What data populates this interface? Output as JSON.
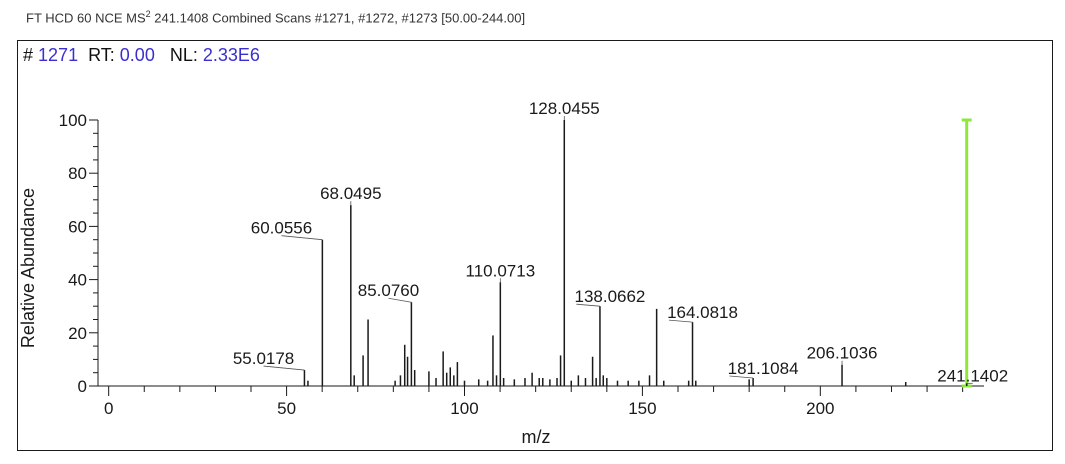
{
  "header": {
    "prefix": "FT HCD 60 NCE MS",
    "superscript": "2",
    "suffix": " 241.1408 Combined Scans #1271, #1272, #1273 [50.00-244.00]"
  },
  "scan_info": {
    "hash": "#",
    "scan_number": "1271",
    "rt_label": "RT:",
    "rt_value": "0.00",
    "nl_label": "NL:",
    "nl_value": "2.33E6"
  },
  "colors": {
    "axis": "#1a1a1a",
    "value_text": "#3a2fd0",
    "precursor_marker": "#8ee83a"
  },
  "chart_data": {
    "type": "bar",
    "xlabel": "m/z",
    "ylabel": "Relative Abundance",
    "xlim": [
      -3,
      246
    ],
    "ylim": [
      0,
      100
    ],
    "x_ticks": [
      0,
      50,
      100,
      150,
      200
    ],
    "y_ticks": [
      0,
      20,
      40,
      60,
      80,
      100
    ],
    "precursor_mz": 241.1402,
    "peaks": [
      {
        "mz": 55.0178,
        "intensity": 6.0,
        "label": "55.0178"
      },
      {
        "mz": 56.0,
        "intensity": 2.0
      },
      {
        "mz": 60.0556,
        "intensity": 55.0,
        "label": "60.0556"
      },
      {
        "mz": 68.0495,
        "intensity": 68.0,
        "label": "68.0495"
      },
      {
        "mz": 69.0,
        "intensity": 4.0
      },
      {
        "mz": 71.5,
        "intensity": 11.5
      },
      {
        "mz": 72.9,
        "intensity": 25.0
      },
      {
        "mz": 80.5,
        "intensity": 2.0
      },
      {
        "mz": 82.0,
        "intensity": 4.0
      },
      {
        "mz": 83.2,
        "intensity": 15.5
      },
      {
        "mz": 84.0,
        "intensity": 11.0
      },
      {
        "mz": 85.076,
        "intensity": 31.5,
        "label": "85.0760"
      },
      {
        "mz": 86.0,
        "intensity": 6.0
      },
      {
        "mz": 90.0,
        "intensity": 5.5
      },
      {
        "mz": 92.0,
        "intensity": 3.0
      },
      {
        "mz": 94.0,
        "intensity": 13.0
      },
      {
        "mz": 95.0,
        "intensity": 5.0
      },
      {
        "mz": 96.0,
        "intensity": 7.0
      },
      {
        "mz": 97.0,
        "intensity": 4.0
      },
      {
        "mz": 98.0,
        "intensity": 9.0
      },
      {
        "mz": 100.0,
        "intensity": 2.0
      },
      {
        "mz": 104.0,
        "intensity": 2.5
      },
      {
        "mz": 106.5,
        "intensity": 2.0
      },
      {
        "mz": 108.0,
        "intensity": 19.0
      },
      {
        "mz": 109.0,
        "intensity": 4.0
      },
      {
        "mz": 110.0713,
        "intensity": 39.0,
        "label": "110.0713"
      },
      {
        "mz": 111.0,
        "intensity": 3.0
      },
      {
        "mz": 114.0,
        "intensity": 2.5
      },
      {
        "mz": 117.0,
        "intensity": 3.0
      },
      {
        "mz": 119.0,
        "intensity": 5.0
      },
      {
        "mz": 121.0,
        "intensity": 3.0
      },
      {
        "mz": 122.0,
        "intensity": 3.0
      },
      {
        "mz": 124.0,
        "intensity": 2.5
      },
      {
        "mz": 126.0,
        "intensity": 3.0
      },
      {
        "mz": 127.0,
        "intensity": 11.5
      },
      {
        "mz": 128.0455,
        "intensity": 100.0,
        "label": "128.0455"
      },
      {
        "mz": 130.0,
        "intensity": 2.0
      },
      {
        "mz": 132.0,
        "intensity": 4.0
      },
      {
        "mz": 134.0,
        "intensity": 3.0
      },
      {
        "mz": 136.0,
        "intensity": 11.0
      },
      {
        "mz": 137.0,
        "intensity": 3.0
      },
      {
        "mz": 138.0662,
        "intensity": 30.0,
        "label": "138.0662"
      },
      {
        "mz": 139.0,
        "intensity": 4.0
      },
      {
        "mz": 140.0,
        "intensity": 3.0
      },
      {
        "mz": 143.0,
        "intensity": 2.0
      },
      {
        "mz": 146.0,
        "intensity": 2.0
      },
      {
        "mz": 149.0,
        "intensity": 2.0
      },
      {
        "mz": 152.0,
        "intensity": 4.0
      },
      {
        "mz": 154.0,
        "intensity": 29.0
      },
      {
        "mz": 156.0,
        "intensity": 2.0
      },
      {
        "mz": 163.0,
        "intensity": 2.0
      },
      {
        "mz": 164.0818,
        "intensity": 24.0,
        "label": "164.0818"
      },
      {
        "mz": 165.0,
        "intensity": 2.0
      },
      {
        "mz": 180.0,
        "intensity": 2.5
      },
      {
        "mz": 181.1084,
        "intensity": 3.0,
        "label": "181.1084"
      },
      {
        "mz": 206.1036,
        "intensity": 8.0,
        "label": "206.1036"
      },
      {
        "mz": 224.0,
        "intensity": 1.5
      },
      {
        "mz": 241.1402,
        "intensity": 1.0,
        "label": "241.1402"
      }
    ]
  }
}
